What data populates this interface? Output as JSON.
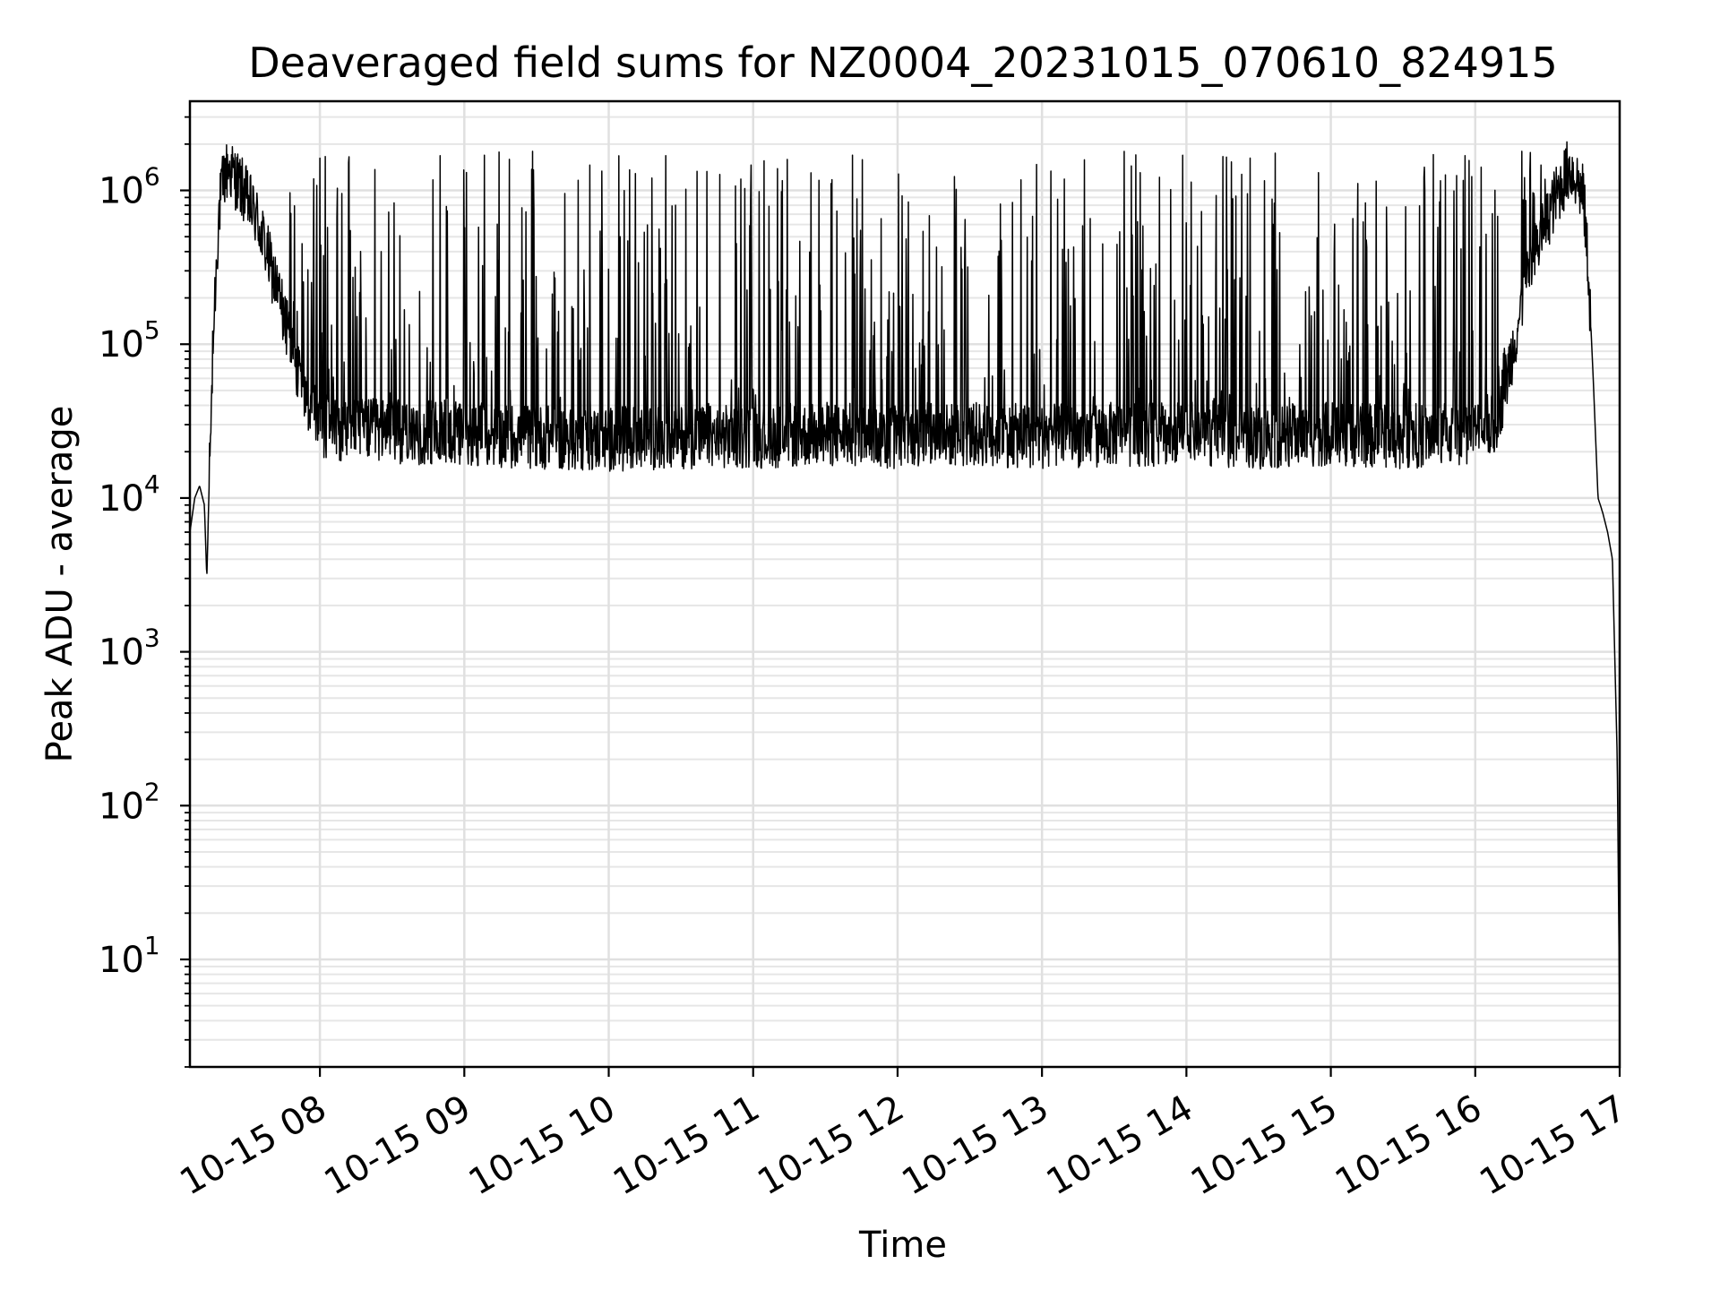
{
  "chart_data": {
    "type": "line",
    "title": "Deaveraged field sums for NZ0004_20231015_070610_824915",
    "xlabel": "Time",
    "ylabel": "Peak ADU - average",
    "y_scale": "log",
    "ylim": [
      2,
      3800000
    ],
    "xlim": [
      "2023-10-15 07:06",
      "2023-10-15 17:00"
    ],
    "grid": true,
    "x_ticks": [
      {
        "t": "2023-10-15 08:00",
        "label": "10-15 08"
      },
      {
        "t": "2023-10-15 09:00",
        "label": "10-15 09"
      },
      {
        "t": "2023-10-15 10:00",
        "label": "10-15 10"
      },
      {
        "t": "2023-10-15 11:00",
        "label": "10-15 11"
      },
      {
        "t": "2023-10-15 12:00",
        "label": "10-15 12"
      },
      {
        "t": "2023-10-15 13:00",
        "label": "10-15 13"
      },
      {
        "t": "2023-10-15 14:00",
        "label": "10-15 14"
      },
      {
        "t": "2023-10-15 15:00",
        "label": "10-15 15"
      },
      {
        "t": "2023-10-15 16:00",
        "label": "10-15 16"
      },
      {
        "t": "2023-10-15 17:00",
        "label": "10-15 17"
      }
    ],
    "y_ticks": [
      {
        "value": 10,
        "base": "10",
        "exp": "1"
      },
      {
        "value": 100,
        "base": "10",
        "exp": "2"
      },
      {
        "value": 1000,
        "base": "10",
        "exp": "3"
      },
      {
        "value": 10000,
        "base": "10",
        "exp": "4"
      },
      {
        "value": 100000,
        "base": "10",
        "exp": "5"
      },
      {
        "value": 1000000,
        "base": "10",
        "exp": "6"
      }
    ],
    "series": [
      {
        "color": "#000000",
        "t": [
          "2023-10-15 07:06",
          "2023-10-15 07:08",
          "2023-10-15 07:10",
          "2023-10-15 07:12",
          "2023-10-15 07:13",
          "2023-10-15 07:14",
          "2023-10-15 07:16",
          "2023-10-15 07:18",
          "2023-10-15 07:20",
          "2023-10-15 07:22",
          "2023-10-15 07:25",
          "2023-10-15 07:28",
          "2023-10-15 07:31",
          "2023-10-15 07:34",
          "2023-10-15 07:37",
          "2023-10-15 07:40",
          "2023-10-15 07:44",
          "2023-10-15 07:48",
          "2023-10-15 07:52",
          "2023-10-15 07:56",
          "2023-10-15 08:00",
          "2023-10-15 08:10",
          "2023-10-15 08:30",
          "2023-10-15 09:00",
          "2023-10-15 09:30",
          "2023-10-15 10:00",
          "2023-10-15 10:30",
          "2023-10-15 11:00",
          "2023-10-15 11:30",
          "2023-10-15 12:00",
          "2023-10-15 12:30",
          "2023-10-15 13:00",
          "2023-10-15 13:30",
          "2023-10-15 14:00",
          "2023-10-15 14:30",
          "2023-10-15 15:00",
          "2023-10-15 15:30",
          "2023-10-15 16:00",
          "2023-10-15 16:08",
          "2023-10-15 16:12",
          "2023-10-15 16:16",
          "2023-10-15 16:20",
          "2023-10-15 16:24",
          "2023-10-15 16:28",
          "2023-10-15 16:32",
          "2023-10-15 16:36",
          "2023-10-15 16:39",
          "2023-10-15 16:42",
          "2023-10-15 16:45",
          "2023-10-15 16:47",
          "2023-10-15 16:49",
          "2023-10-15 16:51",
          "2023-10-15 16:53",
          "2023-10-15 16:55",
          "2023-10-15 16:57",
          "2023-10-15 16:59",
          "2023-10-15 17:00"
        ],
        "values": [
          6000,
          10000,
          12000,
          9000,
          3000,
          12000,
          150000,
          700000,
          1200000,
          1400000,
          1200000,
          1000000,
          800000,
          650000,
          450000,
          300000,
          180000,
          100000,
          60000,
          40000,
          30000,
          28000,
          27000,
          26000,
          25000,
          24000,
          25000,
          25000,
          26000,
          25000,
          26000,
          25000,
          26000,
          26000,
          25000,
          26000,
          25000,
          27000,
          30000,
          50000,
          100000,
          200000,
          350000,
          550000,
          800000,
          1100000,
          1400000,
          1200000,
          900000,
          300000,
          60000,
          10000,
          8000,
          6000,
          4000,
          200,
          4
        ]
      }
    ],
    "spikes": {
      "region": [
        "2023-10-15 07:45",
        "2023-10-15 16:30"
      ],
      "baseline": 25000,
      "peak_max": 1800000,
      "count": 420
    }
  }
}
